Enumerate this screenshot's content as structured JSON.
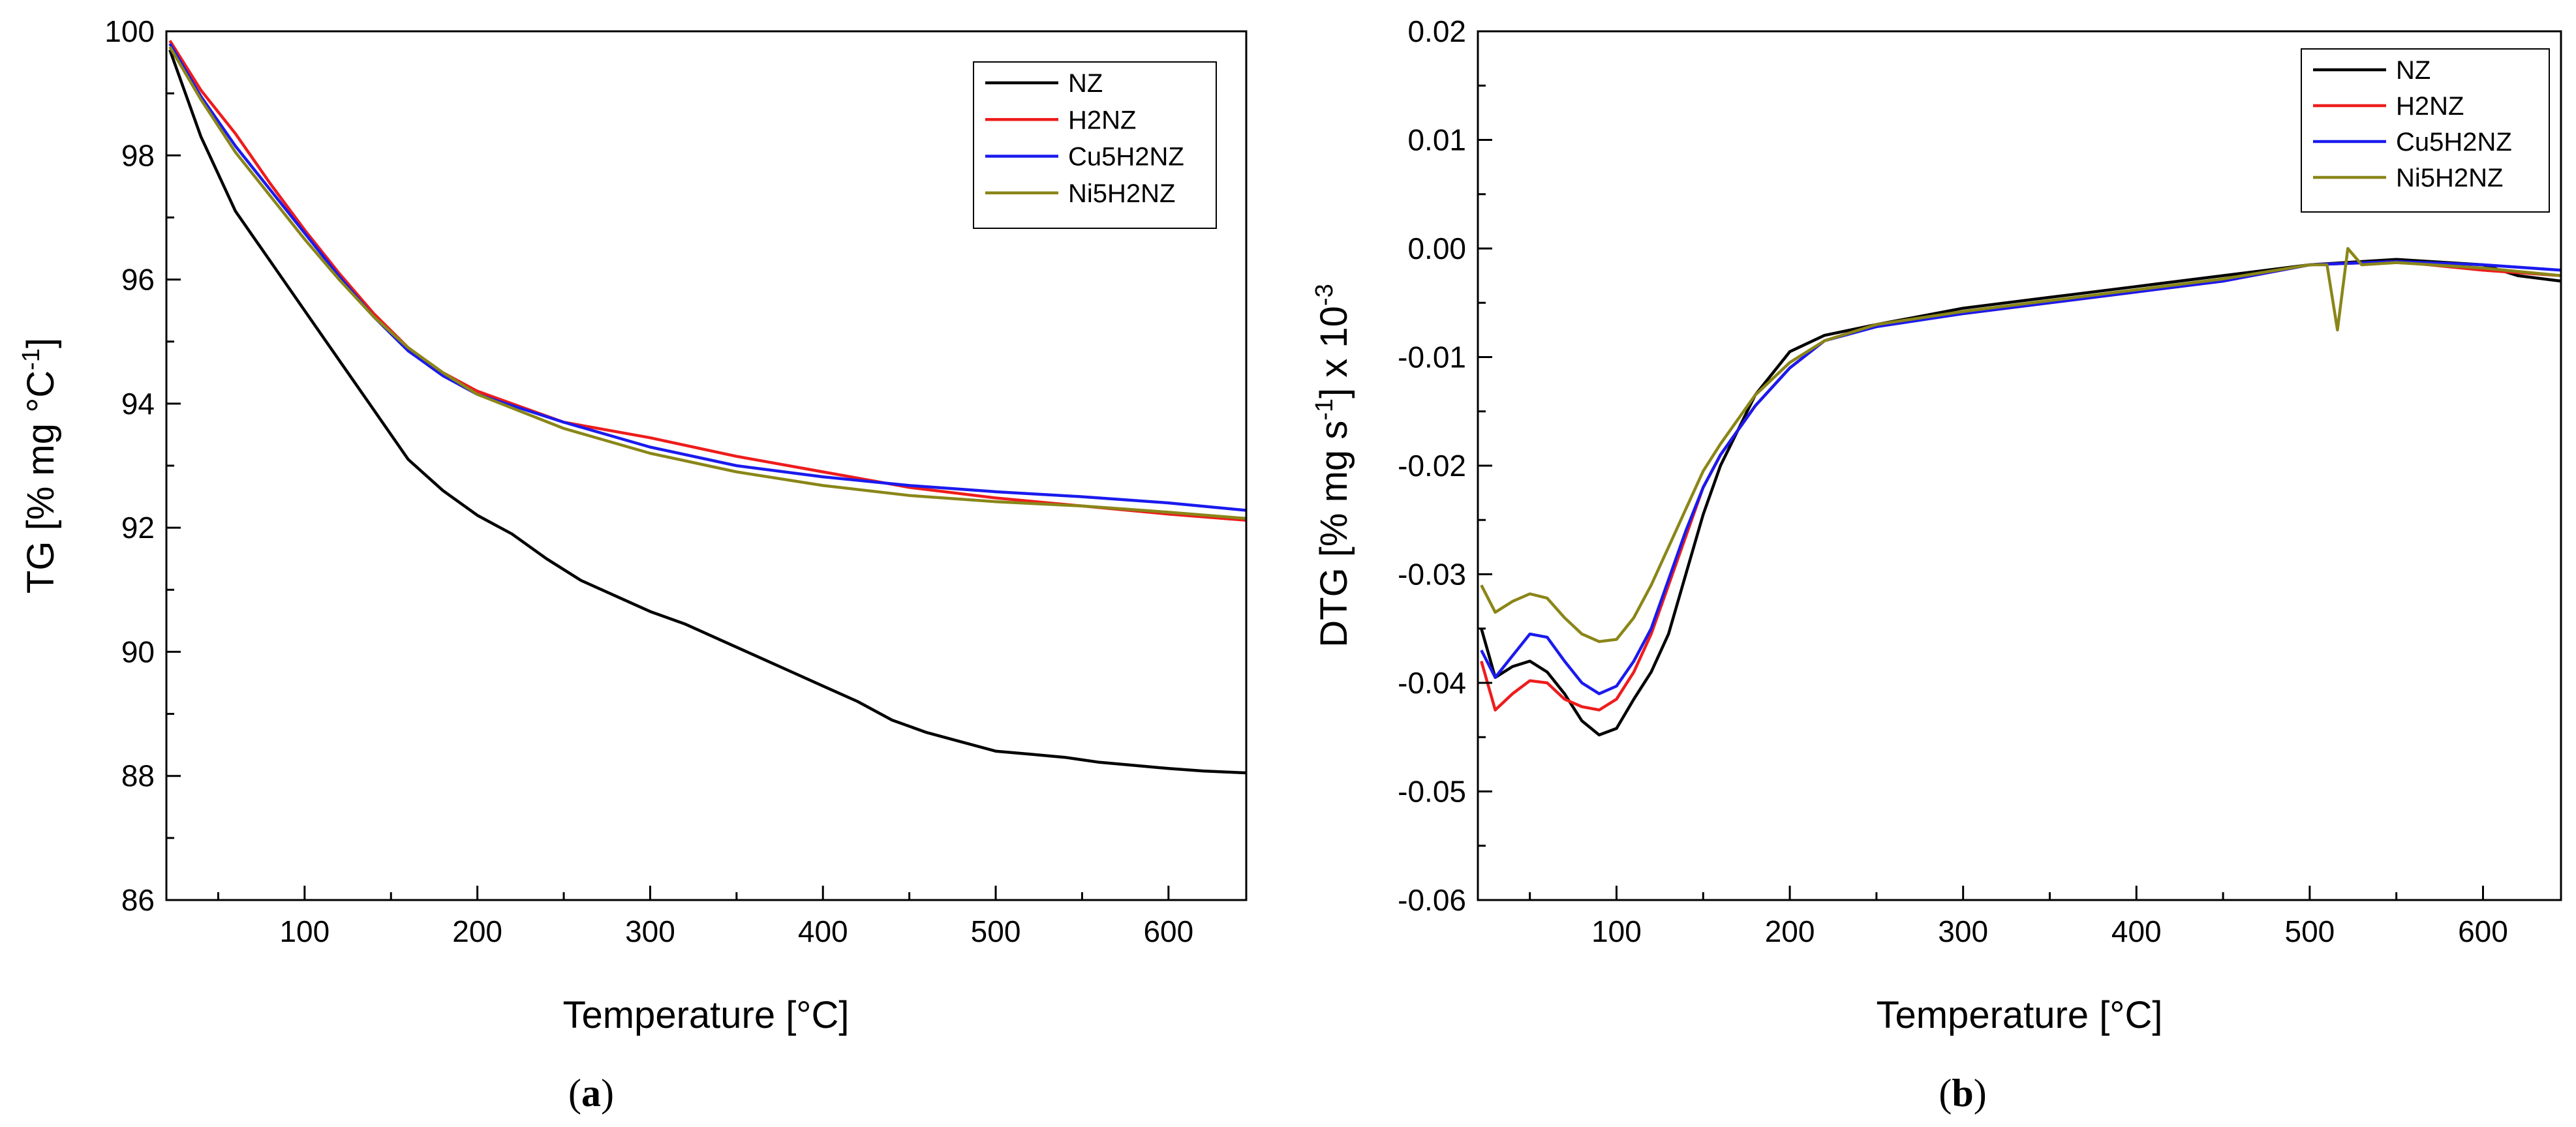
{
  "chart_data": [
    {
      "type": "line",
      "panel_label": "a",
      "xlabel": "Temperature [°C]",
      "ylabel": "TG [% mg °C",
      "ylabel_sup": "-1",
      "ylabel_end": "]",
      "xlim": [
        20,
        645
      ],
      "ylim": [
        86,
        100
      ],
      "xticks": [
        100,
        200,
        300,
        400,
        500,
        600
      ],
      "yticks": [
        86,
        88,
        90,
        92,
        94,
        96,
        98,
        100
      ],
      "legend_position": "top-right",
      "series": [
        {
          "name": "NZ",
          "color": "#000000",
          "x": [
            22,
            40,
            60,
            80,
            100,
            120,
            140,
            160,
            180,
            200,
            220,
            240,
            260,
            280,
            300,
            320,
            340,
            360,
            380,
            400,
            420,
            440,
            460,
            480,
            500,
            520,
            540,
            560,
            580,
            600,
            620,
            645
          ],
          "y": [
            99.7,
            98.3,
            97.1,
            96.3,
            95.5,
            94.7,
            93.9,
            93.1,
            92.6,
            92.2,
            91.9,
            91.5,
            91.15,
            90.9,
            90.65,
            90.45,
            90.2,
            89.95,
            89.7,
            89.45,
            89.2,
            88.9,
            88.7,
            88.55,
            88.4,
            88.35,
            88.3,
            88.22,
            88.17,
            88.12,
            88.08,
            88.05
          ]
        },
        {
          "name": "H2NZ",
          "color": "#ee1c1c",
          "x": [
            22,
            40,
            60,
            80,
            100,
            120,
            140,
            160,
            180,
            200,
            250,
            300,
            350,
            400,
            450,
            500,
            550,
            600,
            645
          ],
          "y": [
            99.85,
            99.05,
            98.35,
            97.55,
            96.8,
            96.1,
            95.45,
            94.9,
            94.5,
            94.2,
            93.7,
            93.45,
            93.15,
            92.9,
            92.65,
            92.48,
            92.35,
            92.22,
            92.12
          ]
        },
        {
          "name": "Cu5H2NZ",
          "color": "#1a1aee",
          "x": [
            22,
            40,
            60,
            80,
            100,
            120,
            140,
            160,
            180,
            200,
            250,
            300,
            350,
            400,
            450,
            500,
            550,
            600,
            645
          ],
          "y": [
            99.8,
            98.95,
            98.15,
            97.45,
            96.75,
            96.05,
            95.4,
            94.85,
            94.45,
            94.15,
            93.7,
            93.3,
            93.0,
            92.82,
            92.68,
            92.58,
            92.5,
            92.4,
            92.28
          ]
        },
        {
          "name": "Ni5H2NZ",
          "color": "#8a8618",
          "x": [
            22,
            40,
            60,
            80,
            100,
            120,
            140,
            160,
            180,
            200,
            250,
            300,
            350,
            400,
            450,
            500,
            550,
            600,
            645
          ],
          "y": [
            99.75,
            98.9,
            98.05,
            97.35,
            96.65,
            96.0,
            95.4,
            94.9,
            94.5,
            94.15,
            93.6,
            93.2,
            92.9,
            92.68,
            92.52,
            92.42,
            92.35,
            92.25,
            92.15
          ]
        }
      ]
    },
    {
      "type": "line",
      "panel_label": "b",
      "xlabel": "Temperature [°C]",
      "ylabel": "DTG [% mg s",
      "ylabel_sup": "-1",
      "ylabel_mid": "] x 10",
      "ylabel_sup2": "-3",
      "xlim": [
        20,
        645
      ],
      "ylim": [
        -0.06,
        0.02
      ],
      "xticks": [
        100,
        200,
        300,
        400,
        500,
        600
      ],
      "yticks": [
        "0.02",
        "0.01",
        "0.00",
        "-0.01",
        "-0.02",
        "-0.03",
        "-0.04",
        "-0.05",
        "-0.06"
      ],
      "legend_position": "top-right",
      "series": [
        {
          "name": "NZ",
          "color": "#000000",
          "x": [
            22,
            30,
            40,
            50,
            60,
            70,
            80,
            90,
            100,
            110,
            120,
            130,
            140,
            150,
            160,
            180,
            200,
            220,
            250,
            300,
            350,
            400,
            450,
            500,
            550,
            600,
            620,
            645
          ],
          "y": [
            -0.035,
            -0.0395,
            -0.0385,
            -0.038,
            -0.039,
            -0.041,
            -0.0435,
            -0.0448,
            -0.0442,
            -0.0415,
            -0.039,
            -0.0355,
            -0.03,
            -0.0245,
            -0.02,
            -0.0135,
            -0.0095,
            -0.008,
            -0.007,
            -0.0055,
            -0.0045,
            -0.0035,
            -0.0025,
            -0.0015,
            -0.001,
            -0.0015,
            -0.0025,
            -0.003
          ]
        },
        {
          "name": "H2NZ",
          "color": "#ee1c1c",
          "x": [
            22,
            30,
            40,
            50,
            60,
            70,
            80,
            90,
            100,
            110,
            120,
            130,
            140,
            150,
            160,
            180,
            200,
            220,
            250,
            300,
            350,
            400,
            450,
            500,
            550,
            600,
            645
          ],
          "y": [
            -0.038,
            -0.0425,
            -0.041,
            -0.0398,
            -0.04,
            -0.0415,
            -0.0422,
            -0.0425,
            -0.0415,
            -0.039,
            -0.0355,
            -0.031,
            -0.0265,
            -0.022,
            -0.019,
            -0.0145,
            -0.011,
            -0.0085,
            -0.007,
            -0.006,
            -0.005,
            -0.004,
            -0.003,
            -0.0015,
            -0.0012,
            -0.002,
            -0.0025
          ]
        },
        {
          "name": "Cu5H2NZ",
          "color": "#1a1aee",
          "x": [
            22,
            30,
            40,
            50,
            60,
            70,
            80,
            90,
            100,
            110,
            120,
            130,
            140,
            150,
            160,
            180,
            200,
            220,
            250,
            300,
            350,
            400,
            450,
            500,
            550,
            600,
            645
          ],
          "y": [
            -0.037,
            -0.0395,
            -0.0375,
            -0.0355,
            -0.0358,
            -0.038,
            -0.04,
            -0.041,
            -0.0403,
            -0.038,
            -0.035,
            -0.0305,
            -0.026,
            -0.022,
            -0.019,
            -0.0145,
            -0.011,
            -0.0085,
            -0.0072,
            -0.006,
            -0.005,
            -0.004,
            -0.003,
            -0.0015,
            -0.0012,
            -0.0015,
            -0.002
          ]
        },
        {
          "name": "Ni5H2NZ",
          "color": "#8a8618",
          "x": [
            22,
            30,
            40,
            50,
            60,
            70,
            80,
            90,
            100,
            110,
            120,
            130,
            140,
            150,
            160,
            180,
            200,
            220,
            250,
            300,
            350,
            400,
            450,
            500,
            510,
            516,
            522,
            530,
            550,
            600,
            645
          ],
          "y": [
            -0.031,
            -0.0335,
            -0.0325,
            -0.0318,
            -0.0322,
            -0.034,
            -0.0355,
            -0.0362,
            -0.036,
            -0.034,
            -0.031,
            -0.0275,
            -0.024,
            -0.0205,
            -0.018,
            -0.0135,
            -0.0105,
            -0.0085,
            -0.007,
            -0.0058,
            -0.0048,
            -0.0038,
            -0.0028,
            -0.0015,
            -0.0015,
            -0.0075,
            0.0,
            -0.0015,
            -0.0013,
            -0.0018,
            -0.0025
          ]
        }
      ]
    }
  ]
}
